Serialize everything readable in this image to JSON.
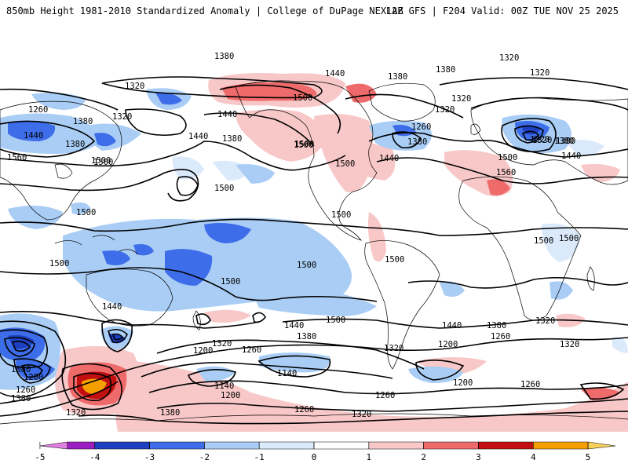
{
  "header": {
    "title": "850mb Height 1981-2010 Standardized Anomaly | College of DuPage NEXLAB",
    "run_info": "12Z GFS | F204 Valid: 00Z TUE NOV 25 2025"
  },
  "map": {
    "projection": "cylindrical global",
    "contour_labels": [
      "1380",
      "1320",
      "1320",
      "1440",
      "1380",
      "1380",
      "1320",
      "1320",
      "1260",
      "1380",
      "1320",
      "1440",
      "1500",
      "1440",
      "1380",
      "1500",
      "1500",
      "1260",
      "1320",
      "1380",
      "1320",
      "1440",
      "1380",
      "1380",
      "1500",
      "1440",
      "1500",
      "1500",
      "1320",
      "1380",
      "1440",
      "1560",
      "1500",
      "1560",
      "1500",
      "1500",
      "1500",
      "1500",
      "1500",
      "1500",
      "1500",
      "1500",
      "1500",
      "1440",
      "1500",
      "1440",
      "1380",
      "1440",
      "1380",
      "1260",
      "1080",
      "1200",
      "1260",
      "1380",
      "1320",
      "1200",
      "1260",
      "1320",
      "1200",
      "1140",
      "1140",
      "1200",
      "1260",
      "1320",
      "1260",
      "1200",
      "1260",
      "1320",
      "1380",
      "1320",
      "1320"
    ]
  },
  "colorbar": {
    "ticks": [
      "-5",
      "-4",
      "-3",
      "-2",
      "-1",
      "0",
      "1",
      "2",
      "3",
      "4",
      "5"
    ],
    "segments": [
      {
        "from": -5,
        "to": -4.5,
        "color": "#e080e0"
      },
      {
        "from": -4.5,
        "to": -4,
        "color": "#9b1fc0"
      },
      {
        "from": -4,
        "to": -3,
        "color": "#1e3fbf"
      },
      {
        "from": -3,
        "to": -2,
        "color": "#3d6de8"
      },
      {
        "from": -2,
        "to": -1,
        "color": "#a9cdf5"
      },
      {
        "from": -1,
        "to": 0,
        "color": "#dbeafb"
      },
      {
        "from": 0,
        "to": 1,
        "color": "#ffffff"
      },
      {
        "from": 1,
        "to": 2,
        "color": "#f8c8c8"
      },
      {
        "from": 2,
        "to": 3,
        "color": "#ef6a6a"
      },
      {
        "from": 3,
        "to": 4,
        "color": "#c20f0f"
      },
      {
        "from": 4,
        "to": 5,
        "color": "#f5a000"
      },
      {
        "from": 5,
        "to": 5.5,
        "color": "#f5d15a"
      }
    ]
  },
  "colors": {
    "contour": "#000000",
    "coast": "#000000",
    "neg1": "#dbeafb",
    "neg2": "#a9cdf5",
    "neg3": "#3d6de8",
    "neg4": "#1e3fbf",
    "pos1": "#f8c8c8",
    "pos2": "#ef6a6a",
    "pos3": "#c20f0f",
    "pos4": "#f5a000"
  }
}
